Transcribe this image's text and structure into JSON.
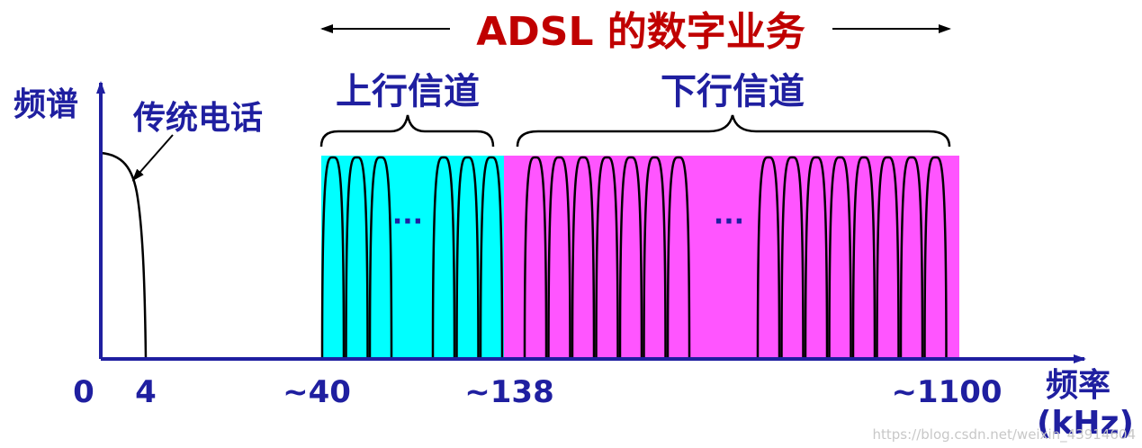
{
  "title": "ADSL 的数字业务",
  "y_axis_label": "频谱",
  "x_axis_label_line1": "频率",
  "x_axis_label_line2": "(kHz)",
  "voice_label": "传统电话",
  "upstream_label": "上行信道",
  "downstream_label": "下行信道",
  "ellipsis": "···",
  "ticks": [
    "0",
    "4",
    "~40",
    "~138",
    "~1100"
  ],
  "watermark": "https://blog.csdn.net/weixin_43914604",
  "colors": {
    "axis": "#1f1fa0",
    "title": "#c00000",
    "upstream_band": "#00ffff",
    "downstream_band": "#ff55ff",
    "curve": "#000000"
  },
  "upstream_carriers_left": 3,
  "upstream_carriers_right": 3,
  "downstream_carriers_left": 7,
  "downstream_carriers_right": 8
}
